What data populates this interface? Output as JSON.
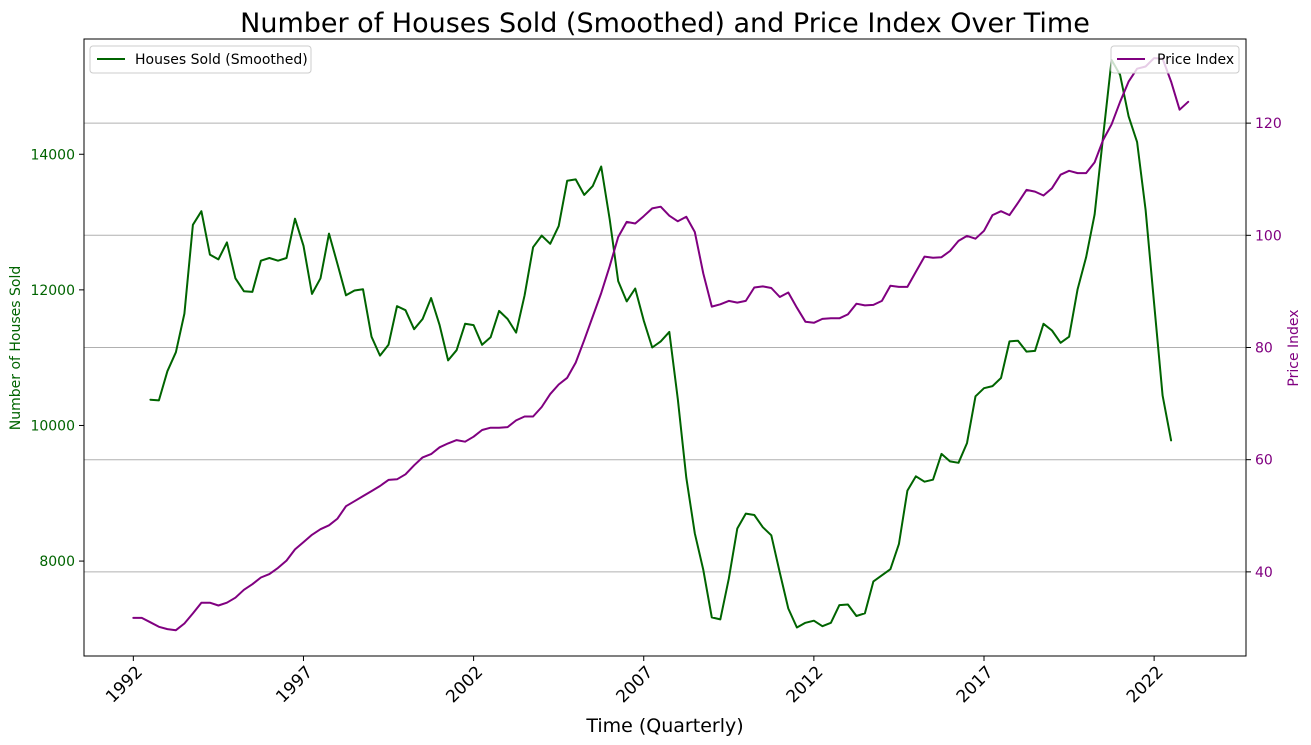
{
  "chart_data": {
    "type": "line",
    "title": "Number of Houses Sold (Smoothed) and Price Index Over Time",
    "xlabel": "Time (Quarterly)",
    "ylabel_left": "Number of Houses Sold",
    "ylabel_right": "Price Index",
    "xlim": [
      1990.55,
      2024.7
    ],
    "ylim_left": [
      6600,
      15700
    ],
    "ylim_right": [
      25,
      135
    ],
    "x_ticks": [
      1992,
      1997,
      2002,
      2007,
      2012,
      2017,
      2022
    ],
    "x_tick_labels": [
      "1992",
      "1997",
      "2002",
      "2007",
      "2012",
      "2017",
      "2022"
    ],
    "y_ticks_left": [
      8000,
      10000,
      12000,
      14000
    ],
    "y_ticks_right": [
      40,
      60,
      80,
      100,
      120
    ],
    "grid": "horizontal lines at right-axis ticks",
    "legend_left": {
      "position": "upper-left",
      "label": "Houses Sold (Smoothed)"
    },
    "legend_right": {
      "position": "upper-right",
      "label": "Price Index"
    },
    "series": [
      {
        "name": "Houses Sold (Smoothed)",
        "axis": "left",
        "color": "#006400",
        "x": [
          1992.5,
          1992.75,
          1993,
          1993.25,
          1993.5,
          1993.75,
          1994,
          1994.25,
          1994.5,
          1994.75,
          1995,
          1995.25,
          1995.5,
          1995.75,
          1996,
          1996.25,
          1996.5,
          1996.75,
          1997,
          1997.25,
          1997.5,
          1997.75,
          1998,
          1998.25,
          1998.5,
          1998.75,
          1999,
          1999.25,
          1999.5,
          1999.75,
          2000,
          2000.25,
          2000.5,
          2000.75,
          2001,
          2001.25,
          2001.5,
          2001.75,
          2002,
          2002.25,
          2002.5,
          2002.75,
          2003,
          2003.25,
          2003.5,
          2003.75,
          2004,
          2004.25,
          2004.5,
          2004.75,
          2005,
          2005.25,
          2005.5,
          2005.75,
          2006,
          2006.25,
          2006.5,
          2006.75,
          2007,
          2007.25,
          2007.5,
          2007.75,
          2008,
          2008.25,
          2008.5,
          2008.75,
          2009,
          2009.25,
          2009.5,
          2009.75,
          2010,
          2010.25,
          2010.5,
          2010.75,
          2011,
          2011.25,
          2011.5,
          2011.75,
          2012,
          2012.25,
          2012.5,
          2012.75,
          2013,
          2013.25,
          2013.5,
          2013.75,
          2014,
          2014.25,
          2014.5,
          2014.75,
          2015,
          2015.25,
          2015.5,
          2015.75,
          2016,
          2016.25,
          2016.5,
          2016.75,
          2017,
          2017.25,
          2017.5,
          2017.75,
          2018,
          2018.25,
          2018.5,
          2018.75,
          2019,
          2019.25,
          2019.5,
          2019.75,
          2020,
          2020.25,
          2020.5,
          2020.75,
          2021,
          2021.25,
          2021.5,
          2021.75,
          2022,
          2022.25,
          2022.5
        ],
        "values": [
          10380,
          10370,
          10800,
          11080,
          11650,
          12960,
          13160,
          12520,
          12450,
          12700,
          12170,
          11980,
          11970,
          12430,
          12470,
          12430,
          12470,
          13050,
          12650,
          11940,
          12170,
          12830,
          12380,
          11920,
          11990,
          12010,
          11310,
          11030,
          11190,
          11760,
          11700,
          11420,
          11570,
          11880,
          11480,
          10960,
          11110,
          11500,
          11480,
          11190,
          11300,
          11690,
          11570,
          11370,
          11920,
          12630,
          12800,
          12680,
          12940,
          13610,
          13630,
          13400,
          13530,
          13820,
          13040,
          12130,
          11830,
          12020,
          11550,
          11150,
          11240,
          11380,
          10390,
          9230,
          8410,
          7870,
          7170,
          7140,
          7740,
          8480,
          8700,
          8680,
          8500,
          8380,
          7830,
          7300,
          7020,
          7090,
          7120,
          7040,
          7090,
          7350,
          7360,
          7190,
          7230,
          7700,
          7790,
          7880,
          8250,
          9040,
          9250,
          9170,
          9200,
          9580,
          9470,
          9450,
          9740,
          10430,
          10550,
          10580,
          10700,
          11240,
          11250,
          11090,
          11100,
          11500,
          11400,
          11220,
          11310,
          12010,
          12480,
          13110,
          14260,
          15390,
          15170,
          14560,
          14180,
          13180,
          11800,
          10440,
          9780
        ]
      },
      {
        "name": "Price Index",
        "axis": "right",
        "color": "#800080",
        "x": [
          1992,
          1992.25,
          1992.5,
          1992.75,
          1993,
          1993.25,
          1993.5,
          1993.75,
          1994,
          1994.25,
          1994.5,
          1994.75,
          1995,
          1995.25,
          1995.5,
          1995.75,
          1996,
          1996.25,
          1996.5,
          1996.75,
          1997,
          1997.25,
          1997.5,
          1997.75,
          1998,
          1998.25,
          1998.5,
          1998.75,
          1999,
          1999.25,
          1999.5,
          1999.75,
          2000,
          2000.25,
          2000.5,
          2000.75,
          2001,
          2001.25,
          2001.5,
          2001.75,
          2002,
          2002.25,
          2002.5,
          2002.75,
          2003,
          2003.25,
          2003.5,
          2003.75,
          2004,
          2004.25,
          2004.5,
          2004.75,
          2005,
          2005.25,
          2005.5,
          2005.75,
          2006,
          2006.25,
          2006.5,
          2006.75,
          2007,
          2007.25,
          2007.5,
          2007.75,
          2008,
          2008.25,
          2008.5,
          2008.75,
          2009,
          2009.25,
          2009.5,
          2009.75,
          2010,
          2010.25,
          2010.5,
          2010.75,
          2011,
          2011.25,
          2011.5,
          2011.75,
          2012,
          2012.25,
          2012.5,
          2012.75,
          2013,
          2013.25,
          2013.5,
          2013.75,
          2014,
          2014.25,
          2014.5,
          2014.75,
          2015,
          2015.25,
          2015.5,
          2015.75,
          2016,
          2016.25,
          2016.5,
          2016.75,
          2017,
          2017.25,
          2017.5,
          2017.75,
          2018,
          2018.25,
          2018.5,
          2018.75,
          2019,
          2019.25,
          2019.5,
          2019.75,
          2020,
          2020.25,
          2020.5,
          2020.75,
          2021,
          2021.25,
          2021.5,
          2021.75,
          2022,
          2022.25,
          2022.5,
          2022.75,
          2023
        ],
        "values": [
          31.8,
          31.8,
          31.0,
          30.2,
          29.8,
          29.6,
          30.8,
          32.6,
          34.5,
          34.5,
          34.0,
          34.5,
          35.4,
          36.8,
          37.8,
          39.0,
          39.6,
          40.7,
          42.0,
          44.0,
          45.3,
          46.6,
          47.6,
          48.3,
          49.5,
          51.7,
          52.6,
          53.5,
          54.4,
          55.3,
          56.4,
          56.5,
          57.4,
          59.0,
          60.4,
          61.0,
          62.2,
          62.9,
          63.5,
          63.2,
          64.1,
          65.3,
          65.7,
          65.7,
          65.8,
          67.0,
          67.7,
          67.7,
          69.4,
          71.7,
          73.4,
          74.6,
          77.3,
          81.3,
          85.5,
          89.7,
          94.5,
          99.7,
          102.4,
          102.1,
          103.4,
          104.8,
          105.1,
          103.5,
          102.5,
          103.3,
          100.6,
          93.2,
          87.3,
          87.7,
          88.3,
          88.0,
          88.3,
          90.7,
          90.9,
          90.6,
          89.0,
          89.8,
          87.1,
          84.6,
          84.4,
          85.1,
          85.2,
          85.2,
          85.9,
          87.8,
          87.5,
          87.6,
          88.3,
          91.0,
          90.8,
          90.8,
          93.5,
          96.2,
          96.0,
          96.1,
          97.2,
          99.0,
          99.9,
          99.4,
          100.8,
          103.6,
          104.3,
          103.6,
          105.8,
          108.1,
          107.8,
          107.1,
          108.4,
          110.8,
          111.5,
          111.1,
          111.1,
          113.0,
          117.0,
          119.8,
          123.8,
          127.4,
          129.7,
          130.1,
          131.6,
          131.5,
          127.4,
          122.4,
          123.8
        ]
      }
    ]
  }
}
